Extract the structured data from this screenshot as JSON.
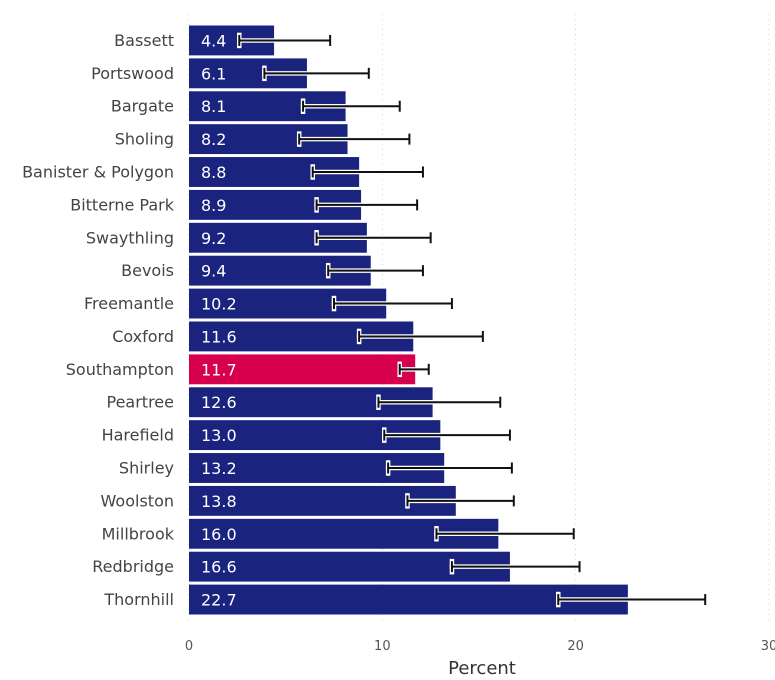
{
  "chart_data": {
    "type": "bar",
    "orientation": "horizontal",
    "categories": [
      "Bassett",
      "Portswood",
      "Bargate",
      "Sholing",
      "Banister & Polygon",
      "Bitterne Park",
      "Swaythling",
      "Bevois",
      "Freemantle",
      "Coxford",
      "Southampton",
      "Peartree",
      "Harefield",
      "Shirley",
      "Woolston",
      "Millbrook",
      "Redbridge",
      "Thornhill"
    ],
    "values": [
      4.4,
      6.1,
      8.1,
      8.2,
      8.8,
      8.9,
      9.2,
      9.4,
      10.2,
      11.6,
      11.7,
      12.6,
      13.0,
      13.2,
      13.8,
      16.0,
      16.6,
      22.7
    ],
    "value_labels": [
      "4.4",
      "6.1",
      "8.1",
      "8.2",
      "8.8",
      "8.9",
      "9.2",
      "9.4",
      "10.2",
      "11.6",
      "11.7",
      "12.6",
      "13.0",
      "13.2",
      "13.8",
      "16.0",
      "16.6",
      "22.7"
    ],
    "ci_lower": [
      2.6,
      3.9,
      5.9,
      5.7,
      6.4,
      6.6,
      6.6,
      7.2,
      7.5,
      8.8,
      10.9,
      9.8,
      10.1,
      10.3,
      11.3,
      12.8,
      13.6,
      19.1
    ],
    "ci_upper": [
      7.3,
      9.3,
      10.9,
      11.4,
      12.1,
      11.8,
      12.5,
      12.1,
      13.6,
      15.2,
      12.4,
      16.1,
      16.6,
      16.7,
      16.8,
      19.9,
      20.2,
      26.7
    ],
    "highlight": "Southampton",
    "colors": {
      "bar": "#1a237e",
      "highlight": "#d6004c",
      "error_bar": "#111111",
      "grid": "#d0d0d0"
    },
    "xlabel": "Percent",
    "xlim": [
      0,
      30
    ],
    "xticks": [
      "0",
      "10",
      "20",
      "30"
    ],
    "grid": true,
    "legend": "none"
  }
}
